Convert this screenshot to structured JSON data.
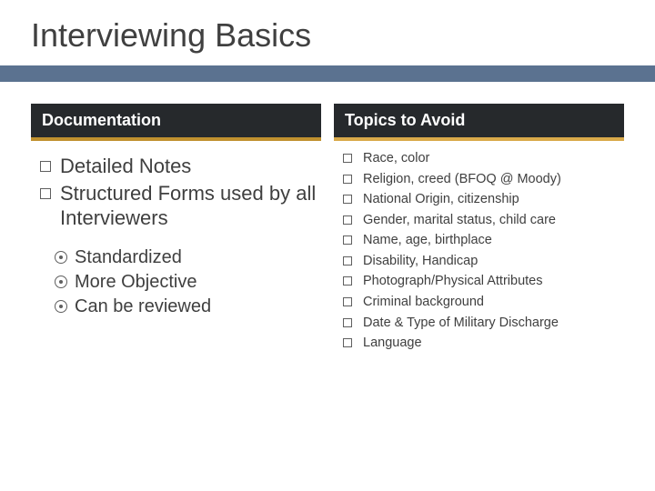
{
  "title": "Interviewing Basics",
  "accent_color": "#5b7290",
  "left": {
    "header": "Documentation",
    "header_bg": "#26292c",
    "header_border": "#c0912f",
    "items": [
      "Detailed Notes",
      "Structured Forms used by all Interviewers"
    ],
    "sub_items": [
      "Standardized",
      "More Objective",
      "Can be reviewed"
    ]
  },
  "right": {
    "header": "Topics to Avoid",
    "header_bg": "#26292c",
    "header_border": "#d9a94a",
    "items": [
      "Race, color",
      "Religion, creed (BFOQ @ Moody)",
      "National Origin, citizenship",
      "Gender, marital status, child care",
      "Name, age, birthplace",
      "Disability, Handicap",
      "Photograph/Physical Attributes",
      "Criminal background",
      "Date & Type of Military Discharge",
      "Language"
    ]
  },
  "text_color": "#3f3f3f",
  "title_fontsize": 36,
  "header_fontsize": 18,
  "main_list_fontsize": 22,
  "sub_list_fontsize": 20,
  "avoid_list_fontsize": 14.5
}
